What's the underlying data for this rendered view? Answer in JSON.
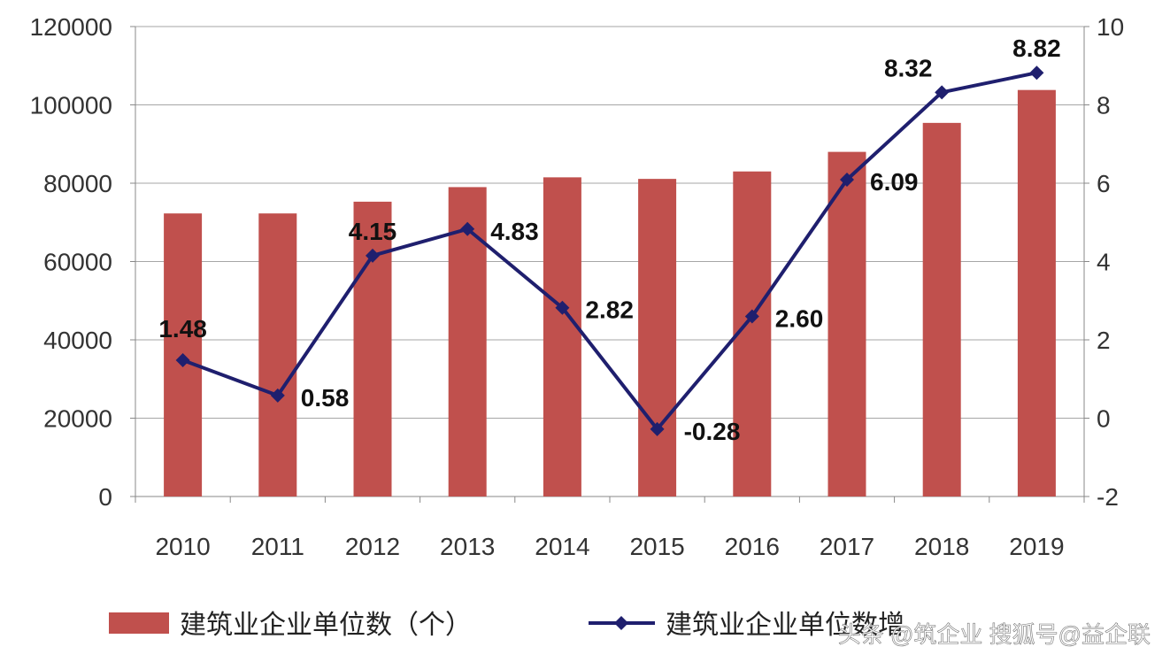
{
  "chart_data": {
    "type": "bar",
    "categories": [
      "2010",
      "2011",
      "2012",
      "2013",
      "2014",
      "2015",
      "2016",
      "2017",
      "2018",
      "2019"
    ],
    "y_left": {
      "ylim": [
        0,
        120000
      ],
      "ticks": [
        0,
        20000,
        40000,
        60000,
        80000,
        100000,
        120000
      ],
      "tick_labels": [
        "0",
        "20000",
        "40000",
        "60000",
        "80000",
        "100000",
        "120000"
      ]
    },
    "y_right": {
      "ylim": [
        -2,
        10
      ],
      "ticks": [
        -2,
        0,
        2,
        4,
        6,
        8,
        10
      ],
      "tick_labels": [
        "-2",
        "0",
        "2",
        "4",
        "6",
        "8",
        "10"
      ]
    },
    "grid": true,
    "legend_position": "bottom",
    "series": [
      {
        "name": "建筑业企业单位数（个）",
        "type": "bar",
        "axis": "left",
        "color": "#c0504d",
        "values": [
          72280,
          72280,
          75280,
          79000,
          81500,
          81100,
          83000,
          88000,
          95400,
          103800
        ]
      },
      {
        "name": "建筑业企业单位数增",
        "type": "line",
        "axis": "right",
        "color": "#1f1f6e",
        "values": [
          1.48,
          0.58,
          4.15,
          4.83,
          2.82,
          -0.28,
          2.6,
          6.09,
          8.32,
          8.82
        ],
        "data_labels": [
          "1.48",
          "0.58",
          "4.15",
          "4.83",
          "2.82",
          "-0.28",
          "2.60",
          "6.09",
          "8.32",
          "8.82"
        ]
      }
    ]
  },
  "watermark": "头条 @筑企业 搜狐号@益企联"
}
